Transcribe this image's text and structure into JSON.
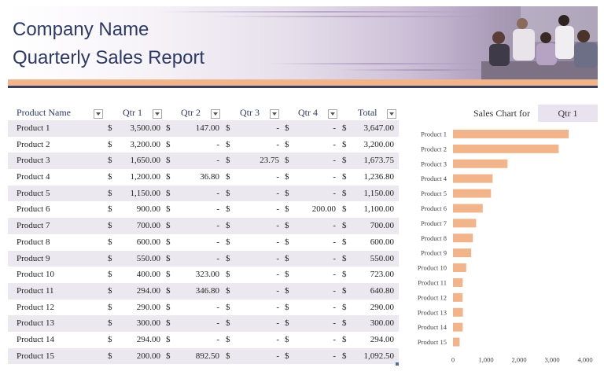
{
  "header": {
    "company_name": "Company Name",
    "report_title": "Quarterly Sales Report"
  },
  "table": {
    "headers": [
      "Product Name",
      "Qtr 1",
      "Qtr 2",
      "Qtr 3",
      "Qtr 4",
      "Total"
    ],
    "currency_symbol": "$",
    "rows": [
      {
        "product": "Product 1",
        "q1": "3,500.00",
        "q2": "147.00",
        "q3": "-",
        "q4": "-",
        "total": "3,647.00"
      },
      {
        "product": "Product 2",
        "q1": "3,200.00",
        "q2": "-",
        "q3": "-",
        "q4": "-",
        "total": "3,200.00"
      },
      {
        "product": "Product 3",
        "q1": "1,650.00",
        "q2": "-",
        "q3": "23.75",
        "q4": "-",
        "total": "1,673.75"
      },
      {
        "product": "Product 4",
        "q1": "1,200.00",
        "q2": "36.80",
        "q3": "-",
        "q4": "-",
        "total": "1,236.80"
      },
      {
        "product": "Product 5",
        "q1": "1,150.00",
        "q2": "-",
        "q3": "-",
        "q4": "-",
        "total": "1,150.00"
      },
      {
        "product": "Product 6",
        "q1": "900.00",
        "q2": "-",
        "q3": "-",
        "q4": "200.00",
        "total": "1,100.00"
      },
      {
        "product": "Product 7",
        "q1": "700.00",
        "q2": "-",
        "q3": "-",
        "q4": "-",
        "total": "700.00"
      },
      {
        "product": "Product 8",
        "q1": "600.00",
        "q2": "-",
        "q3": "-",
        "q4": "-",
        "total": "600.00"
      },
      {
        "product": "Product 9",
        "q1": "550.00",
        "q2": "-",
        "q3": "-",
        "q4": "-",
        "total": "550.00"
      },
      {
        "product": "Product 10",
        "q1": "400.00",
        "q2": "323.00",
        "q3": "-",
        "q4": "-",
        "total": "723.00"
      },
      {
        "product": "Product 11",
        "q1": "294.00",
        "q2": "346.80",
        "q3": "-",
        "q4": "-",
        "total": "640.80"
      },
      {
        "product": "Product 12",
        "q1": "290.00",
        "q2": "-",
        "q3": "-",
        "q4": "-",
        "total": "290.00"
      },
      {
        "product": "Product 13",
        "q1": "300.00",
        "q2": "-",
        "q3": "-",
        "q4": "-",
        "total": "300.00"
      },
      {
        "product": "Product 14",
        "q1": "294.00",
        "q2": "-",
        "q3": "-",
        "q4": "-",
        "total": "294.00"
      },
      {
        "product": "Product 15",
        "q1": "200.00",
        "q2": "892.50",
        "q3": "-",
        "q4": "-",
        "total": "1,092.50"
      }
    ]
  },
  "chart_panel": {
    "label": "Sales Chart for",
    "selected_quarter": "Qtr 1"
  },
  "chart_data": {
    "type": "bar",
    "orientation": "horizontal",
    "categories": [
      "Product 1",
      "Product 2",
      "Product 3",
      "Product 4",
      "Product 5",
      "Product 6",
      "Product 7",
      "Product 8",
      "Product 9",
      "Product 10",
      "Product 11",
      "Product 12",
      "Product 13",
      "Product 14",
      "Product 15"
    ],
    "values": [
      3500,
      3200,
      1650,
      1200,
      1150,
      900,
      700,
      600,
      550,
      400,
      294,
      290,
      300,
      294,
      200
    ],
    "xlim": [
      0,
      4000
    ],
    "xticks": [
      "0",
      "1,000",
      "2,000",
      "3,000",
      "4,000"
    ],
    "title": "",
    "grid": false,
    "bar_color": "#f2b48a"
  },
  "colors": {
    "title_text": "#2e3a66",
    "accent_orange": "#f2b48a",
    "row_shade": "#ece8f0",
    "header_purple": "#9a88ad"
  }
}
